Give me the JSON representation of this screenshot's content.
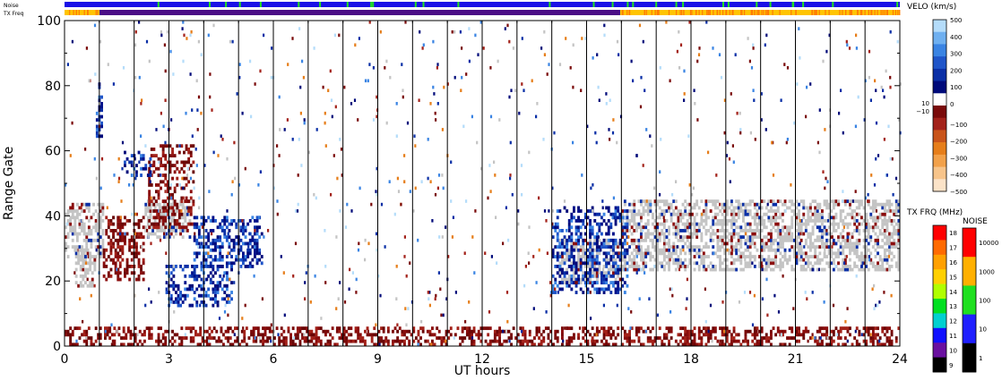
{
  "chart_data": {
    "type": "heatmap",
    "xlabel": "UT hours",
    "ylabel": "Range Gate",
    "xlim": [
      0,
      24
    ],
    "ylim": [
      0,
      100
    ],
    "xticks": [
      0,
      3,
      6,
      9,
      12,
      15,
      18,
      21,
      24
    ],
    "yticks": [
      0,
      20,
      40,
      60,
      80,
      100
    ],
    "strip_labels": {
      "noise": "Noise",
      "txfreq": "TX Freq"
    },
    "velocity_colorbar": {
      "title": "VELO (km/s)",
      "ticks": [
        500,
        400,
        300,
        200,
        100,
        0,
        -100,
        -200,
        -300,
        -400,
        -500
      ],
      "zero_band_labels": [
        "10",
        "−10"
      ],
      "colors": [
        "#fbe3c8",
        "#f7c48a",
        "#f2a14a",
        "#e67e1a",
        "#c9541a",
        "#a3221a",
        "#7a0a0a",
        "#ffffff",
        "#000a7a",
        "#0a2fa6",
        "#1f55c9",
        "#3a84e3",
        "#6fb0f0",
        "#b4dcfa"
      ]
    },
    "txfreq_colorbar": {
      "title": "TX FRQ (MHz)",
      "ticks": [
        "18",
        "17",
        "16",
        "15",
        "14",
        "13",
        "12",
        "11",
        "10",
        "9"
      ],
      "colors": [
        "#ff0000",
        "#ff6a00",
        "#ffa000",
        "#ffd000",
        "#b0ff00",
        "#00e020",
        "#00d0d0",
        "#1010ff",
        "#6a10a0",
        "#000000"
      ]
    },
    "noise_colorbar": {
      "title": "NOISE",
      "ticks": [
        "10000",
        "1000",
        "100",
        "10",
        "1"
      ],
      "colors": [
        "#ff0000",
        "#ffb000",
        "#20e020",
        "#2020ff",
        "#000000"
      ]
    },
    "echo_regions": [
      {
        "kind": "ground_scatter",
        "t0": 0.0,
        "t1": 1.1,
        "g0": 27,
        "g1": 44
      },
      {
        "kind": "ground_scatter",
        "t0": 0.3,
        "t1": 0.9,
        "g0": 18,
        "g1": 30
      },
      {
        "kind": "ground_scatter",
        "t0": 2.3,
        "t1": 3.6,
        "g0": 33,
        "g1": 45
      },
      {
        "kind": "ground_scatter",
        "t0": 16.0,
        "t1": 24.0,
        "g0": 23,
        "g1": 45
      },
      {
        "kind": "ground_scatter",
        "t0": 14.2,
        "t1": 16.0,
        "g0": 19,
        "g1": 33
      },
      {
        "kind": "away",
        "t0": 1.1,
        "t1": 2.3,
        "g0": 20,
        "g1": 40
      },
      {
        "kind": "away",
        "t0": 2.4,
        "t1": 3.7,
        "g0": 36,
        "g1": 62
      },
      {
        "kind": "away",
        "t0": 0.0,
        "t1": 24.0,
        "g0": 0,
        "g1": 6
      },
      {
        "kind": "toward",
        "t0": 3.7,
        "t1": 5.7,
        "g0": 24,
        "g1": 40
      },
      {
        "kind": "toward",
        "t0": 2.9,
        "t1": 4.8,
        "g0": 12,
        "g1": 25
      },
      {
        "kind": "toward",
        "t0": 1.7,
        "t1": 2.5,
        "g0": 52,
        "g1": 60
      },
      {
        "kind": "toward",
        "t0": 0.9,
        "t1": 1.1,
        "g0": 64,
        "g1": 81
      },
      {
        "kind": "toward",
        "t0": 14.0,
        "t1": 16.2,
        "g0": 16,
        "g1": 43
      }
    ],
    "grid": "vertical lines each hour",
    "noise_strip": "blue with scattered green",
    "txfreq_strip": "yellow/orange 0-1 UT, purple 1-16 UT, yellow/orange 16-24 UT"
  }
}
